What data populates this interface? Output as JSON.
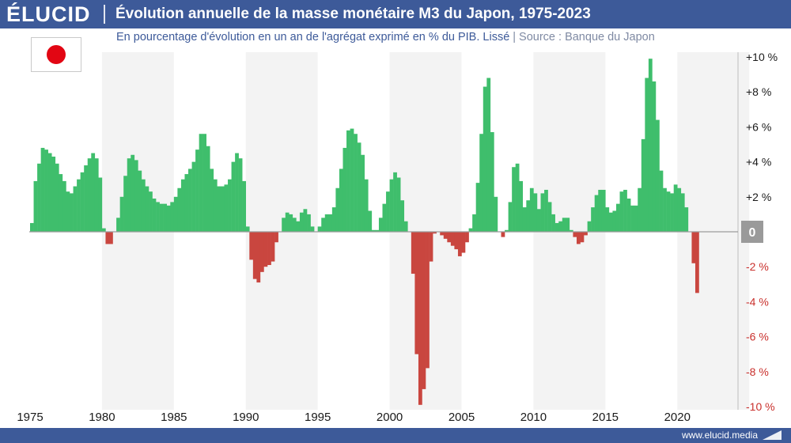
{
  "header": {
    "logo": "ÉLUCID",
    "title": "Évolution annuelle de la masse monétaire M3 du Japon, 1975-2023"
  },
  "subtitle": {
    "description": "En pourcentage d'évolution en un an de l'agrégat exprimé en % du PIB. Lissé",
    "separator": "|",
    "source": "Source : Banque du Japon"
  },
  "flag": {
    "icon": "japan-flag-icon",
    "disc_color": "#e20613"
  },
  "footer": {
    "url": "www.elucid.media"
  },
  "colors": {
    "positive": "#3fbe6c",
    "negative": "#c9463f",
    "band": "#f3f3f3",
    "header": "#3d5a99",
    "zero_badge": "#9a9a9a"
  },
  "chart_data": {
    "type": "bar",
    "title": "Évolution annuelle de la masse monétaire M3 du Japon, 1975-2023",
    "subtitle": "En pourcentage d'évolution en un an de l'agrégat exprimé en % du PIB. Lissé",
    "frequency": "quarterly",
    "start": "1975-Q1",
    "x_tick_labels": [
      "1975",
      "1980",
      "1985",
      "1990",
      "1995",
      "2000",
      "2005",
      "2010",
      "2015",
      "2020"
    ],
    "y_tick_labels": [
      "+10 %",
      "+8 %",
      "+6 %",
      "+4 %",
      "+2 %",
      "0",
      "-2 %",
      "-4 %",
      "-6 %",
      "-8 %",
      "-10 %"
    ],
    "ylim": [
      -10,
      10
    ],
    "grid": false,
    "alternating_year_bands": true,
    "series": [
      {
        "values": [
          0.5,
          2.9,
          3.9,
          4.8,
          4.7,
          4.5,
          4.3,
          3.9,
          3.3,
          2.9,
          2.3,
          2.2,
          2.6,
          3.0,
          3.4,
          3.8,
          4.2,
          4.5,
          4.2,
          3.1,
          0.2,
          -0.7,
          -0.7,
          0.0,
          0.8,
          2.0,
          3.2,
          4.2,
          4.4,
          4.1,
          3.5,
          3.0,
          2.6,
          2.3,
          1.9,
          1.7,
          1.6,
          1.6,
          1.5,
          1.7,
          2.0,
          2.5,
          3.0,
          3.3,
          3.6,
          4.0,
          4.7,
          5.6,
          5.6,
          4.9,
          3.6,
          3.0,
          2.6,
          2.6,
          2.7,
          3.0,
          4.0,
          4.5,
          4.2,
          2.9,
          0.3,
          -1.6,
          -2.7,
          -2.9,
          -2.3,
          -2.0,
          -1.9,
          -1.7,
          -0.6,
          0.0,
          0.8,
          1.1,
          1.0,
          0.8,
          0.6,
          1.1,
          1.3,
          1.0,
          0.3,
          0.0,
          0.3,
          0.8,
          1.0,
          1.0,
          1.4,
          2.5,
          3.6,
          4.8,
          5.8,
          5.9,
          5.6,
          5.1,
          4.4,
          3.0,
          1.2,
          0.1,
          0.1,
          0.8,
          1.6,
          2.3,
          3.0,
          3.4,
          3.1,
          1.8,
          0.6,
          0.0,
          -2.4,
          -7.0,
          -9.9,
          -9.0,
          -7.8,
          -1.7,
          -0.1,
          0.0,
          -0.2,
          -0.4,
          -0.6,
          -0.8,
          -1.0,
          -1.4,
          -1.2,
          -0.6,
          0.2,
          1.0,
          2.8,
          5.6,
          8.3,
          8.8,
          5.7,
          2.0,
          0.0,
          -0.3,
          0.1,
          1.7,
          3.7,
          3.9,
          2.9,
          1.4,
          1.8,
          2.5,
          2.2,
          1.3,
          2.2,
          2.4,
          1.7,
          1.0,
          0.5,
          0.6,
          0.8,
          0.8,
          0.1,
          -0.3,
          -0.7,
          -0.6,
          -0.2,
          0.6,
          1.4,
          2.1,
          2.4,
          2.4,
          1.4,
          1.1,
          1.2,
          1.6,
          2.3,
          2.4,
          1.9,
          1.5,
          1.5,
          2.5,
          5.3,
          8.8,
          9.9,
          8.6,
          6.4,
          3.5,
          2.5,
          2.3,
          2.2,
          2.7,
          2.5,
          2.2,
          1.4,
          0.0,
          -1.8,
          -3.5
        ]
      }
    ]
  }
}
